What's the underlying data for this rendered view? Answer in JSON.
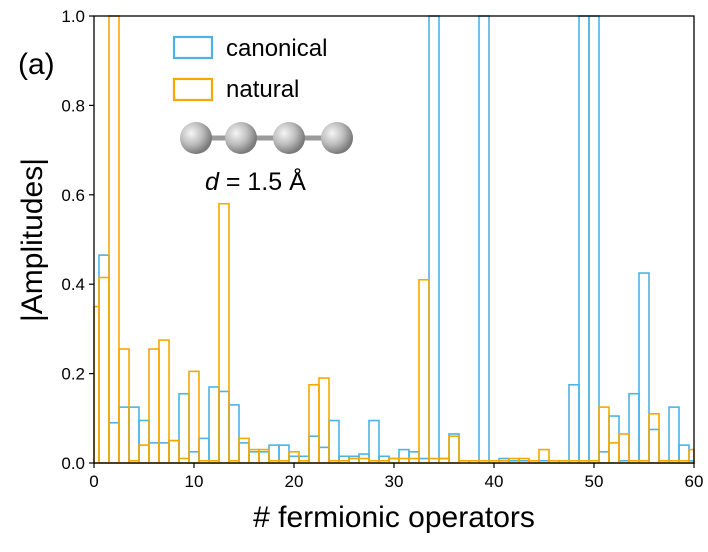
{
  "chart_data": {
    "type": "bar",
    "panel_label": "(a)",
    "xlabel": "# fermionic operators",
    "ylabel": "|Amplitudes|",
    "xlim": [
      0,
      60
    ],
    "ylim": [
      0,
      1.0
    ],
    "xticks": [
      0,
      10,
      20,
      30,
      40,
      50,
      60
    ],
    "yticks": [
      0.0,
      0.2,
      0.4,
      0.6,
      0.8,
      1.0
    ],
    "xtick_labels": [
      "0",
      "10",
      "20",
      "30",
      "40",
      "50",
      "60"
    ],
    "ytick_labels": [
      "0.0",
      "0.2",
      "0.4",
      "0.6",
      "0.8",
      "1.0"
    ],
    "legend": [
      "canonical",
      "natural"
    ],
    "inset_label_var": "d",
    "inset_label_value": " = 1.5 Å",
    "colors": {
      "canonical": "#4db3e6",
      "natural": "#f5a800"
    },
    "bar_width": 1,
    "series": [
      {
        "name": "canonical",
        "x": [
          1,
          2,
          3,
          4,
          5,
          6,
          7,
          8,
          9,
          10,
          11,
          12,
          13,
          14,
          15,
          16,
          17,
          18,
          19,
          20,
          21,
          22,
          23,
          24,
          25,
          26,
          27,
          28,
          29,
          30,
          31,
          32,
          33,
          34,
          35,
          36,
          37,
          38,
          39,
          40,
          41,
          42,
          43,
          44,
          45,
          46,
          47,
          48,
          49,
          50,
          51,
          52,
          53,
          54,
          55,
          56,
          57,
          58,
          59,
          60
        ],
        "values": [
          0.465,
          0.09,
          0.125,
          0.125,
          0.095,
          0.045,
          0.045,
          0.05,
          0.155,
          0.025,
          0.055,
          0.17,
          0.16,
          0.13,
          0.045,
          0.025,
          0.025,
          0.04,
          0.04,
          0.015,
          0.015,
          0.06,
          0.035,
          0.095,
          0.015,
          0.015,
          0.02,
          0.095,
          0.015,
          0.01,
          0.03,
          0.025,
          0.01,
          1.0,
          0.01,
          0.065,
          0.0,
          0.0,
          1.0,
          0.005,
          0.01,
          0.005,
          0.005,
          0.005,
          0.005,
          0.005,
          0.005,
          0.175,
          1.0,
          1.0,
          0.025,
          0.105,
          0.005,
          0.155,
          0.425,
          0.075,
          0.005,
          0.125,
          0.04,
          0.005
        ]
      },
      {
        "name": "natural",
        "x": [
          0,
          1,
          2,
          3,
          4,
          5,
          6,
          7,
          8,
          9,
          10,
          11,
          12,
          13,
          14,
          15,
          16,
          17,
          18,
          19,
          20,
          21,
          22,
          23,
          24,
          25,
          26,
          27,
          28,
          29,
          30,
          31,
          32,
          33,
          34,
          35,
          36,
          37,
          38,
          39,
          40,
          41,
          42,
          43,
          44,
          45,
          46,
          47,
          48,
          49,
          50,
          51,
          52,
          53,
          54,
          55,
          56,
          57,
          58,
          59,
          60
        ],
        "values": [
          0.35,
          0.415,
          1.0,
          0.255,
          0.005,
          0.04,
          0.255,
          0.275,
          0.05,
          0.01,
          0.205,
          0.005,
          0.005,
          0.58,
          0.005,
          0.055,
          0.03,
          0.03,
          0.005,
          0.005,
          0.025,
          0.005,
          0.175,
          0.19,
          0.005,
          0.005,
          0.01,
          0.01,
          0.005,
          0.005,
          0.01,
          0.01,
          0.01,
          0.41,
          0.01,
          0.01,
          0.06,
          0.005,
          0.005,
          0.005,
          0.005,
          0.005,
          0.01,
          0.01,
          0.005,
          0.03,
          0.005,
          0.005,
          0.005,
          0.005,
          0.005,
          0.125,
          0.045,
          0.065,
          0.005,
          0.005,
          0.11,
          0.005,
          0.005,
          0.005,
          0.03
        ]
      }
    ]
  }
}
